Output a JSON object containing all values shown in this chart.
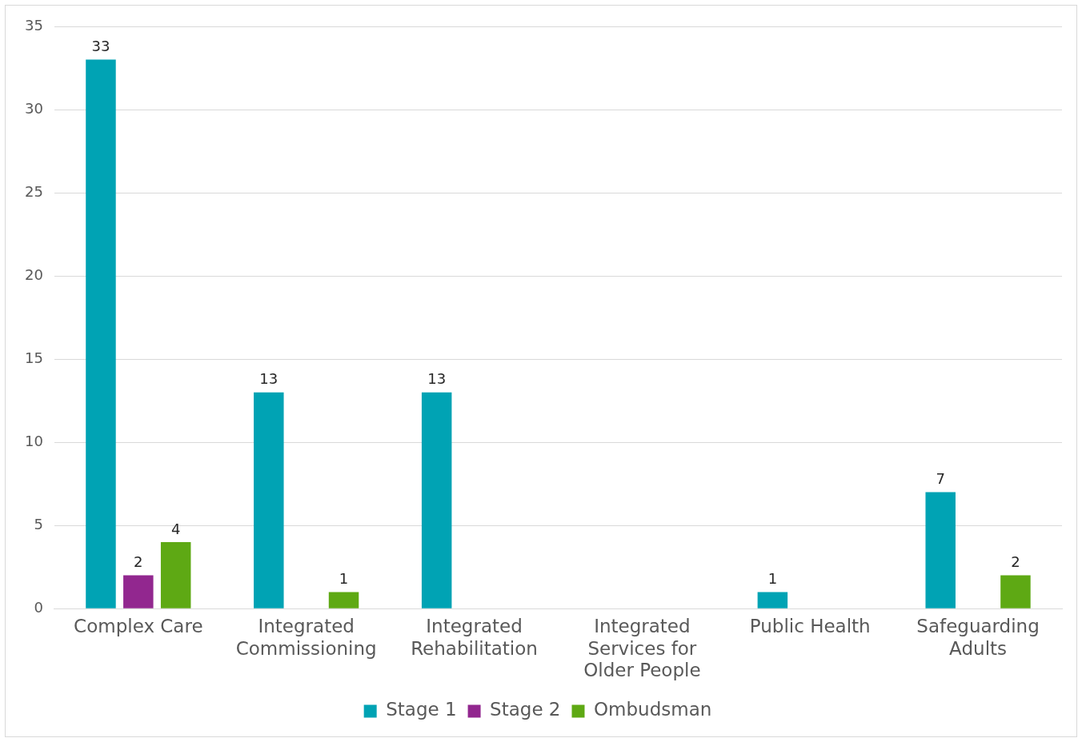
{
  "chart_data": {
    "type": "bar",
    "categories": [
      "Complex Care",
      "Integrated Commissioning",
      "Integrated Rehabilitation",
      "Integrated Services for Older People",
      "Public Health",
      "Safeguarding Adults"
    ],
    "series": [
      {
        "name": "Stage 1",
        "color": "#00a3b4",
        "values": [
          33,
          13,
          13,
          0,
          1,
          7
        ],
        "value_labels": [
          "33",
          "13",
          "13",
          null,
          "1",
          "7"
        ]
      },
      {
        "name": "Stage 2",
        "color": "#92278f",
        "values": [
          2,
          0,
          0,
          0,
          0,
          0
        ],
        "value_labels": [
          "2",
          null,
          null,
          null,
          null,
          null
        ]
      },
      {
        "name": "Ombudsman",
        "color": "#5ea914",
        "values": [
          4,
          1,
          0,
          0,
          0,
          2
        ],
        "value_labels": [
          "4",
          "1",
          null,
          null,
          null,
          "2"
        ]
      }
    ],
    "ylim": [
      0,
      35
    ],
    "yticks": [
      0,
      5,
      10,
      15,
      20,
      25,
      30,
      35
    ],
    "grid": "y",
    "legend": "bottom"
  }
}
